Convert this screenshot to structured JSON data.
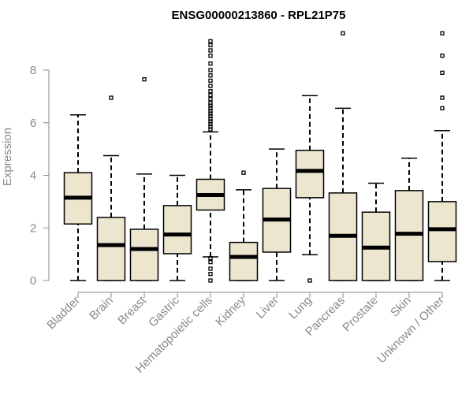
{
  "chart_data": {
    "type": "boxplot",
    "title": "ENSG00000213860 - RPL21P75",
    "xlabel": "",
    "ylabel": "Expression",
    "ylim": [
      0,
      9.4
    ],
    "yticks": [
      0,
      2,
      4,
      6,
      8
    ],
    "categories": [
      "Bladder",
      "Brain",
      "Breast",
      "Gastric",
      "Hematopoietic cells",
      "Kidney",
      "Liver",
      "Lung",
      "Pancreas",
      "Prostate",
      "Skin",
      "Unknown / Other"
    ],
    "boxes": [
      {
        "category": "Bladder",
        "whisker_low": 0.0,
        "q1": 2.15,
        "median": 3.15,
        "q3": 4.1,
        "whisker_high": 6.3,
        "outliers": []
      },
      {
        "category": "Brain",
        "whisker_low": 0.0,
        "q1": 0.0,
        "median": 1.35,
        "q3": 2.4,
        "whisker_high": 4.75,
        "outliers": [
          6.95
        ]
      },
      {
        "category": "Breast",
        "whisker_low": 0.0,
        "q1": 0.0,
        "median": 1.2,
        "q3": 1.95,
        "whisker_high": 4.05,
        "outliers": [
          7.65
        ]
      },
      {
        "category": "Gastric",
        "whisker_low": 0.0,
        "q1": 1.02,
        "median": 1.75,
        "q3": 2.85,
        "whisker_high": 4.0,
        "outliers": []
      },
      {
        "category": "Hematopoietic cells",
        "whisker_low": 0.9,
        "q1": 2.68,
        "median": 3.25,
        "q3": 3.85,
        "whisker_high": 5.65,
        "outliers": [
          0.0,
          0.25,
          0.45,
          0.7,
          0.85,
          5.75,
          5.85,
          5.95,
          6.05,
          6.15,
          6.25,
          6.35,
          6.45,
          6.55,
          6.65,
          6.75,
          6.9,
          7.05,
          7.2,
          7.4,
          7.6,
          7.8,
          8.0,
          8.25,
          8.55,
          8.75,
          8.95,
          9.1
        ]
      },
      {
        "category": "Kidney",
        "whisker_low": 0.0,
        "q1": 0.0,
        "median": 0.9,
        "q3": 1.45,
        "whisker_high": 3.45,
        "outliers": [
          4.1
        ]
      },
      {
        "category": "Liver",
        "whisker_low": 0.0,
        "q1": 1.08,
        "median": 2.32,
        "q3": 3.5,
        "whisker_high": 5.0,
        "outliers": []
      },
      {
        "category": "Lung",
        "whisker_low": 0.98,
        "q1": 3.15,
        "median": 4.17,
        "q3": 4.95,
        "whisker_high": 7.03,
        "outliers": [
          0.0
        ]
      },
      {
        "category": "Pancreas",
        "whisker_low": 0.0,
        "q1": 0.0,
        "median": 1.7,
        "q3": 3.33,
        "whisker_high": 6.55,
        "outliers": [
          9.4
        ]
      },
      {
        "category": "Prostate",
        "whisker_low": 0.0,
        "q1": 0.0,
        "median": 1.25,
        "q3": 2.6,
        "whisker_high": 3.7,
        "outliers": []
      },
      {
        "category": "Skin",
        "whisker_low": 0.0,
        "q1": 0.0,
        "median": 1.78,
        "q3": 3.42,
        "whisker_high": 4.65,
        "outliers": []
      },
      {
        "category": "Unknown / Other",
        "whisker_low": 0.0,
        "q1": 0.72,
        "median": 1.95,
        "q3": 3.0,
        "whisker_high": 5.7,
        "outliers": [
          6.55,
          6.95,
          7.9,
          8.55,
          9.4
        ]
      }
    ]
  }
}
